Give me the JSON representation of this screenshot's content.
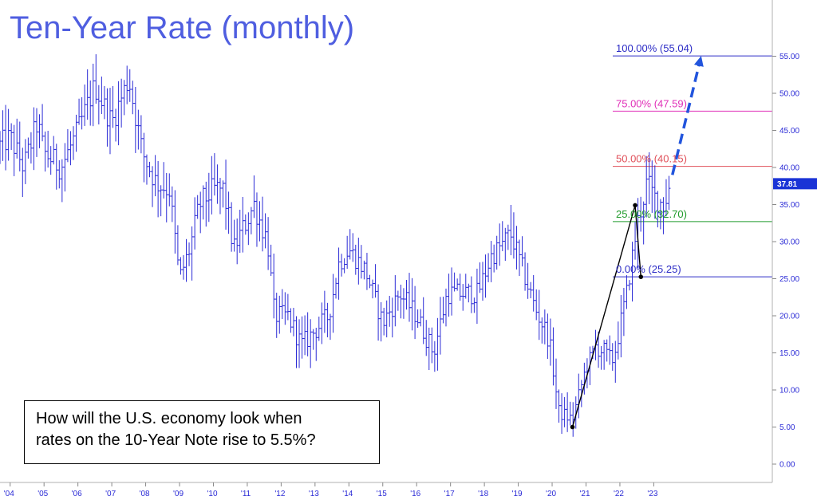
{
  "chart_data": {
    "type": "bar",
    "title": "Ten-Year Rate (monthly)",
    "xlabel": "",
    "ylabel": "",
    "ylim": [
      -3,
      60
    ],
    "y_ticks": [
      "0.00",
      "5.00",
      "10.00",
      "15.00",
      "20.00",
      "25.00",
      "30.00",
      "35.00",
      "40.00",
      "45.00",
      "50.00",
      "55.00"
    ],
    "x_ticks": [
      "'04",
      "'05",
      "'06",
      "'07",
      "'08",
      "'09",
      "'10",
      "'11",
      "'12",
      "'13",
      "'14",
      "'15",
      "'16",
      "'17",
      "'18",
      "'19",
      "'20",
      "'21",
      "'22",
      "'23"
    ],
    "x_range": [
      2003.7,
      2026.5
    ],
    "grid": false,
    "last_value_badge": "37.81",
    "series_color": "#2b2bd6",
    "price_path": [
      [
        2003.7,
        43
      ],
      [
        2004.0,
        44
      ],
      [
        2004.4,
        40
      ],
      [
        2004.8,
        46
      ],
      [
        2005.0,
        42
      ],
      [
        2005.5,
        40
      ],
      [
        2006.0,
        45
      ],
      [
        2006.5,
        51
      ],
      [
        2007.0,
        46
      ],
      [
        2007.5,
        52
      ],
      [
        2007.9,
        42
      ],
      [
        2008.3,
        38
      ],
      [
        2008.7,
        37
      ],
      [
        2009.0,
        25
      ],
      [
        2009.3,
        29
      ],
      [
        2009.6,
        35
      ],
      [
        2010.0,
        37
      ],
      [
        2010.3,
        37
      ],
      [
        2010.6,
        29
      ],
      [
        2011.0,
        33
      ],
      [
        2011.2,
        35
      ],
      [
        2011.6,
        30
      ],
      [
        2011.8,
        20
      ],
      [
        2012.2,
        20
      ],
      [
        2012.6,
        16
      ],
      [
        2013.0,
        18
      ],
      [
        2013.4,
        20
      ],
      [
        2013.7,
        27
      ],
      [
        2014.0,
        29
      ],
      [
        2014.5,
        26
      ],
      [
        2015.0,
        19
      ],
      [
        2015.5,
        23
      ],
      [
        2016.0,
        20
      ],
      [
        2016.5,
        15
      ],
      [
        2016.9,
        23
      ],
      [
        2017.3,
        23
      ],
      [
        2017.8,
        23
      ],
      [
        2018.2,
        28
      ],
      [
        2018.8,
        31
      ],
      [
        2019.0,
        28
      ],
      [
        2019.5,
        21
      ],
      [
        2019.9,
        17
      ],
      [
        2020.2,
        7
      ],
      [
        2020.6,
        6
      ],
      [
        2021.0,
        13
      ],
      [
        2021.3,
        16
      ],
      [
        2021.8,
        14
      ],
      [
        2022.2,
        23
      ],
      [
        2022.5,
        32
      ],
      [
        2022.8,
        38
      ],
      [
        2023.0,
        36
      ],
      [
        2023.3,
        35
      ],
      [
        2023.5,
        37.8
      ]
    ],
    "abc_points": [
      {
        "x": 2020.6,
        "y": 5.0
      },
      {
        "x": 2022.45,
        "y": 34.9
      },
      {
        "x": 2022.62,
        "y": 25.25
      }
    ],
    "projection": {
      "from": [
        2023.55,
        39.0
      ],
      "to": [
        2024.4,
        55.04
      ],
      "color": "#2255dd"
    },
    "fib_levels": [
      {
        "pct": "100.00%",
        "value": 55.04,
        "label": "100.00% (55.04)",
        "color": "#2c2cc6"
      },
      {
        "pct": "75.00%",
        "value": 47.59,
        "label": "75.00% (47.59)",
        "color": "#e030b8"
      },
      {
        "pct": "50.00%",
        "value": 40.15,
        "label": "50.00% (40.15)",
        "color": "#e0505a"
      },
      {
        "pct": "25.00%",
        "value": 32.7,
        "label": "25.00% (32.70)",
        "color": "#1f9a2a"
      },
      {
        "pct": "0.00%",
        "value": 25.25,
        "label": "0.00% (25.25)",
        "color": "#2c2cc6"
      }
    ]
  },
  "annotation": {
    "line1": "How will the U.S. economy look when",
    "line2": "rates on the 10-Year Note rise to 5.5%?"
  }
}
